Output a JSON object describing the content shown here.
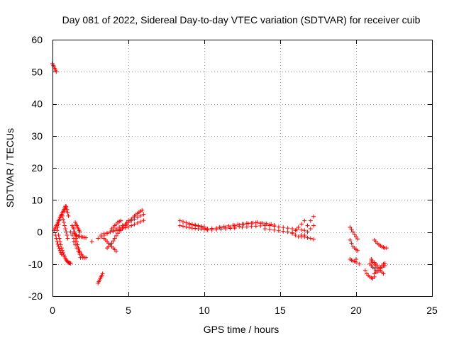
{
  "chart_data": {
    "type": "scatter",
    "title": "Day 081 of 2022, Sidereal Day-to-day VTEC variation (SDTVAR) for receiver cuib",
    "xlabel": "GPS time / hours",
    "ylabel": "SDTVAR / TECUs",
    "xlim": [
      0,
      25
    ],
    "ylim": [
      -20,
      60
    ],
    "xticks": [
      0,
      5,
      10,
      15,
      20,
      25
    ],
    "yticks": [
      -20,
      -10,
      0,
      10,
      20,
      30,
      40,
      50,
      60
    ],
    "xtick_labels": [
      "0",
      "5",
      "10",
      "15",
      "20",
      "25"
    ],
    "ytick_labels": [
      "-20",
      "-10",
      "0",
      "10",
      "20",
      "30",
      "40",
      "50",
      "60"
    ],
    "grid": true,
    "marker": "+",
    "color": "#ff0000",
    "series": [
      {
        "name": "SDTVAR",
        "x": [
          0.0,
          0.05,
          0.1,
          0.15,
          0.2,
          0.25,
          0.1,
          0.15,
          0.2,
          0.25,
          0.3,
          0.35,
          0.4,
          0.45,
          0.5,
          0.55,
          0.6,
          0.65,
          0.7,
          0.75,
          0.8,
          0.85,
          0.9,
          0.95,
          0.4,
          0.45,
          0.5,
          0.55,
          0.6,
          0.65,
          0.7,
          0.75,
          0.8,
          0.85,
          0.9,
          0.95,
          1.0,
          1.05,
          1.1,
          1.15,
          1.2,
          0.3,
          0.35,
          0.4,
          0.45,
          0.5,
          0.55,
          0.6,
          0.65,
          0.7,
          0.75,
          0.8,
          0.85,
          0.9,
          0.95,
          1.0,
          0.2,
          0.25,
          0.3,
          0.35,
          0.4,
          0.45,
          0.5,
          0.55,
          0.6,
          0.8,
          0.85,
          0.9,
          0.95,
          1.0,
          1.05,
          1.2,
          1.3,
          1.4,
          1.5,
          1.6,
          1.7,
          1.8,
          1.9,
          2.0,
          1.4,
          1.5,
          1.6,
          1.7,
          1.8,
          1.9,
          2.0,
          2.1,
          2.2,
          1.3,
          1.35,
          1.4,
          1.45,
          1.5,
          1.55,
          1.6,
          1.65,
          1.7,
          1.75,
          1.8,
          1.85,
          1.5,
          1.55,
          1.6,
          1.65,
          1.7,
          1.75,
          1.8,
          1.4,
          1.45,
          1.5,
          1.55,
          1.6,
          1.7,
          1.8,
          1.9,
          2.0,
          2.1,
          2.2,
          2.0,
          2.6,
          3.0,
          3.05,
          3.1,
          3.15,
          3.2,
          3.25,
          3.3,
          3.0,
          3.2,
          3.4,
          3.6,
          3.8,
          4.0,
          4.2,
          4.4,
          4.6,
          4.8,
          5.0,
          5.2,
          5.4,
          5.6,
          5.8,
          6.0,
          3.2,
          3.4,
          3.6,
          3.8,
          4.0,
          4.2,
          4.4,
          4.6,
          4.8,
          5.0,
          5.2,
          5.4,
          5.6,
          5.8,
          6.0,
          3.6,
          3.7,
          3.8,
          3.9,
          4.0,
          4.1,
          4.2,
          4.3,
          4.4,
          4.5,
          4.6,
          4.7,
          4.8,
          4.9,
          5.0,
          3.4,
          3.5,
          3.6,
          3.7,
          3.8,
          3.9,
          4.0,
          4.1,
          4.2,
          3.9,
          4.0,
          4.1,
          4.2,
          4.3,
          4.4,
          4.5,
          4.5,
          4.6,
          4.7,
          4.8,
          4.9,
          5.0,
          5.1,
          5.2,
          5.3,
          5.4,
          5.5,
          5.6,
          5.7,
          5.8,
          5.9,
          8.4,
          8.6,
          8.8,
          9.0,
          9.2,
          9.4,
          9.6,
          9.8,
          10.0,
          8.4,
          8.6,
          8.8,
          9.0,
          9.2,
          9.4,
          9.6,
          9.8,
          10.0,
          10.2,
          9.0,
          9.2,
          9.4,
          9.6,
          9.8,
          10.0,
          10.2,
          10.2,
          10.5,
          10.8,
          11.1,
          11.4,
          11.7,
          12.0,
          12.3,
          10.2,
          10.5,
          10.8,
          11.1,
          11.4,
          11.7,
          12.0,
          11.0,
          11.3,
          11.6,
          11.9,
          12.2,
          12.5,
          12.8,
          13.1,
          13.4,
          13.7,
          14.0,
          14.3,
          14.6,
          12.0,
          12.3,
          12.6,
          12.9,
          13.2,
          13.5,
          13.8,
          14.1,
          14.4,
          12.5,
          12.8,
          13.1,
          13.4,
          13.7,
          14.0,
          14.3,
          14.6,
          14.9,
          15.2,
          15.5,
          15.8,
          16.1,
          16.4,
          14.0,
          14.3,
          14.6,
          14.9,
          15.2,
          15.5,
          15.8,
          15.8,
          16.0,
          16.2,
          16.4,
          16.6,
          16.0,
          16.2,
          16.4,
          16.6,
          16.8,
          17.0,
          17.2,
          16.4,
          16.6,
          16.8,
          17.0,
          17.2,
          16.6,
          16.8,
          17.0,
          17.2,
          19.6,
          19.7,
          19.8,
          19.9,
          20.0,
          20.1,
          19.6,
          19.7,
          19.8,
          19.9,
          20.0,
          20.1,
          19.6,
          19.7,
          19.8,
          19.9,
          20.0,
          20.2,
          20.0,
          20.6,
          20.7,
          20.8,
          20.9,
          21.0,
          21.1,
          21.2,
          21.2,
          21.3,
          21.4,
          21.5,
          21.6,
          21.7,
          21.8,
          21.9,
          22.0,
          20.9,
          21.0,
          21.1,
          21.2,
          21.3,
          21.4,
          21.5,
          21.6,
          21.7,
          21.8,
          21.9,
          21.0,
          21.1,
          21.2,
          21.3,
          21.4,
          21.5,
          21.6,
          21.7,
          21.8,
          21.2,
          21.3,
          21.4,
          21.5,
          21.6,
          21.7,
          21.8,
          21.9,
          21.0,
          21.1,
          21.2,
          21.3,
          21.4
        ],
        "y": [
          52.5,
          52.0,
          51.5,
          51.0,
          50.5,
          50.0,
          0.5,
          1.0,
          1.5,
          2.0,
          2.5,
          3.0,
          3.5,
          4.0,
          4.5,
          5.0,
          5.5,
          6.0,
          6.5,
          7.0,
          7.5,
          8.0,
          7.5,
          7.0,
          -1.0,
          -2.0,
          -3.0,
          -4.0,
          -5.0,
          -5.8,
          -6.5,
          -7.2,
          -7.8,
          -8.3,
          -8.7,
          -9.0,
          -9.3,
          -9.5,
          -9.6,
          -9.7,
          -9.8,
          0.5,
          1.5,
          2.5,
          3.5,
          4.5,
          5.0,
          5.5,
          5.0,
          4.0,
          3.0,
          2.0,
          1.0,
          0.0,
          -1.0,
          -2.0,
          -1.0,
          -2.0,
          -3.0,
          -3.8,
          -4.5,
          -5.2,
          -5.8,
          -6.5,
          -7.0,
          6.5,
          7.5,
          8.0,
          7.0,
          6.0,
          5.0,
          0.0,
          -1.0,
          -2.0,
          -3.0,
          -4.0,
          -5.0,
          -6.0,
          -7.0,
          -7.5,
          -3.0,
          -4.0,
          -5.0,
          -6.0,
          -6.5,
          -7.0,
          -7.5,
          -8.0,
          -8.0,
          2.0,
          1.5,
          1.0,
          0.0,
          -1.0,
          -2.0,
          -3.0,
          -4.0,
          -5.0,
          -6.0,
          -7.0,
          -8.0,
          3.0,
          2.5,
          2.0,
          1.5,
          1.0,
          0.5,
          0.0,
          0.0,
          -0.5,
          -1.0,
          -1.0,
          -1.2,
          -1.3,
          -1.4,
          -1.5,
          -1.6,
          -1.7,
          -1.8,
          -8.0,
          -3.0,
          -16.0,
          -15.5,
          -15.0,
          -14.5,
          -14.0,
          -13.5,
          -13.0,
          -2.0,
          -1.5,
          -1.0,
          -0.5,
          0.0,
          0.5,
          1.0,
          1.5,
          2.0,
          2.5,
          3.0,
          3.5,
          4.0,
          4.5,
          5.0,
          5.5,
          -1.0,
          -0.5,
          -0.3,
          0.0,
          0.2,
          0.5,
          0.8,
          1.0,
          1.3,
          1.6,
          2.0,
          2.4,
          2.8,
          3.2,
          3.6,
          -5.0,
          -4.5,
          -4.0,
          -3.5,
          -2.8,
          -2.0,
          -1.2,
          -0.4,
          0.4,
          1.0,
          1.5,
          2.0,
          2.5,
          3.0,
          3.5,
          -2.0,
          -2.5,
          -3.0,
          -3.5,
          -4.0,
          -4.5,
          -5.0,
          -5.5,
          -6.0,
          1.0,
          1.5,
          2.0,
          2.5,
          3.0,
          3.3,
          3.5,
          0.5,
          1.0,
          1.5,
          2.0,
          2.5,
          3.0,
          3.5,
          4.0,
          4.5,
          5.0,
          5.4,
          5.8,
          6.2,
          6.5,
          6.8,
          3.5,
          3.2,
          2.9,
          2.6,
          2.4,
          2.2,
          2.0,
          1.8,
          1.6,
          2.0,
          1.8,
          1.6,
          1.4,
          1.2,
          1.1,
          1.0,
          0.9,
          0.8,
          0.7,
          2.5,
          2.2,
          2.0,
          1.8,
          1.5,
          1.2,
          1.0,
          1.0,
          1.1,
          1.2,
          1.3,
          1.4,
          1.5,
          1.6,
          1.7,
          0.6,
          0.7,
          0.8,
          0.9,
          1.0,
          1.1,
          1.2,
          1.5,
          1.7,
          1.9,
          2.1,
          2.3,
          2.5,
          2.7,
          2.8,
          2.9,
          2.7,
          2.5,
          2.3,
          2.1,
          2.0,
          2.2,
          2.4,
          2.6,
          2.8,
          3.0,
          2.8,
          2.6,
          2.4,
          1.5,
          1.6,
          1.7,
          1.8,
          1.9,
          2.0,
          2.0,
          1.8,
          1.6,
          1.4,
          1.2,
          1.0,
          0.8,
          0.6,
          1.0,
          0.8,
          0.6,
          0.4,
          0.2,
          0.0,
          -0.2,
          -0.5,
          0.5,
          1.5,
          2.5,
          3.5,
          -1.0,
          -1.5,
          -1.0,
          0.5,
          2.0,
          3.5,
          4.8,
          -1.5,
          -1.0,
          0.0,
          1.0,
          2.0,
          -1.5,
          -1.8,
          -2.0,
          -2.3,
          1.5,
          0.8,
          0.0,
          -0.8,
          -1.5,
          -2.2,
          -2.5,
          -3.5,
          -4.5,
          -5.0,
          -5.5,
          -5.8,
          -8.5,
          -8.8,
          -9.0,
          -9.2,
          -9.4,
          -10.0,
          -8.5,
          -12.0,
          -13.0,
          -13.5,
          -14.0,
          -14.3,
          -14.5,
          -14.0,
          -2.5,
          -3.0,
          -3.5,
          -4.0,
          -4.3,
          -4.6,
          -4.8,
          -5.0,
          -5.0,
          -10.0,
          -10.5,
          -11.0,
          -11.5,
          -12.0,
          -12.5,
          -12.0,
          -11.5,
          -11.0,
          -10.5,
          -10.5,
          -9.0,
          -9.5,
          -10.0,
          -10.5,
          -11.0,
          -11.5,
          -12.0,
          -12.5,
          -13.0,
          -13.0,
          -12.5,
          -12.0,
          -11.5,
          -11.0,
          -10.5,
          -10.0,
          -9.8,
          -8.5,
          -9.0,
          -9.5,
          -10.0,
          -10.5
        ]
      }
    ]
  }
}
